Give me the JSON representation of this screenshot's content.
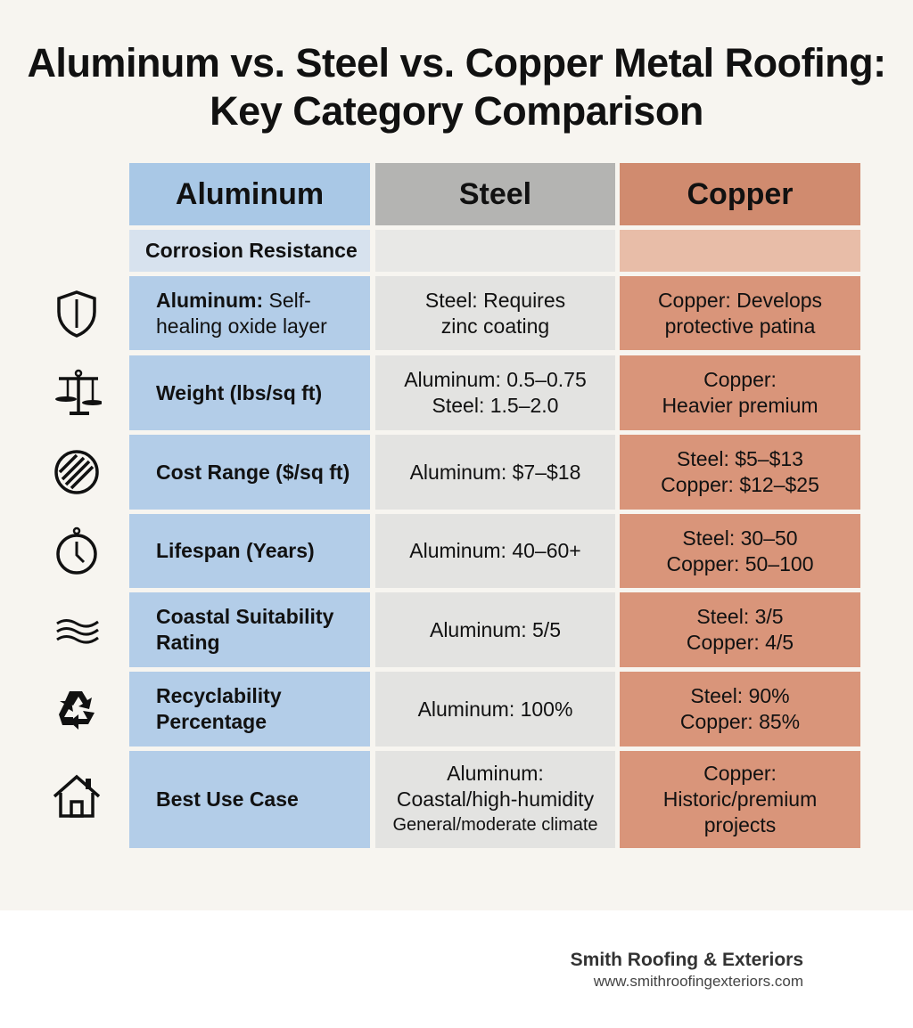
{
  "title": "Aluminum vs. Steel vs. Copper Metal Roofing: Key Category Comparison",
  "columns": [
    "Aluminum",
    "Steel",
    "Copper"
  ],
  "section_row": {
    "label": "Corrosion Resistance"
  },
  "rows": [
    {
      "icon": "shield-icon",
      "aluminum_bold": "Aluminum:",
      "aluminum": " Self-healing oxide layer",
      "steel": [
        "Steel: Requires",
        "zinc coating"
      ],
      "copper": [
        "Copper: Develops",
        "protective patina"
      ]
    },
    {
      "icon": "scale-icon",
      "aluminum": "Weight (lbs/sq ft)",
      "steel": [
        "Aluminum: 0.5–0.75",
        "Steel: 1.5–2.0"
      ],
      "copper": [
        "Copper:",
        "Heavier premium"
      ]
    },
    {
      "icon": "striped-circle-icon",
      "aluminum": "Cost Range ($/sq ft)",
      "steel": [
        "Aluminum: $7–$18"
      ],
      "copper": [
        "Steel: $5–$13",
        "Copper: $12–$25"
      ]
    },
    {
      "icon": "stopwatch-icon",
      "aluminum": "Lifespan (Years)",
      "steel": [
        "Aluminum: 40–60+"
      ],
      "copper": [
        "Steel: 30–50",
        "Copper: 50–100"
      ]
    },
    {
      "icon": "waves-icon",
      "aluminum": "Coastal Suitability Rating",
      "steel": [
        "Aluminum: 5/5"
      ],
      "copper": [
        "Steel: 3/5",
        "Copper: 4/5"
      ]
    },
    {
      "icon": "recycle-icon",
      "aluminum": "Recyclability Percentage",
      "steel": [
        "Aluminum: 100%"
      ],
      "copper": [
        "Steel: 90%",
        "Copper: 85%"
      ]
    },
    {
      "icon": "house-icon",
      "aluminum": "Best Use Case",
      "steel": [
        "Aluminum:",
        "Coastal/high-humidity",
        "General/moderate climate"
      ],
      "copper": [
        "Copper:",
        "Historic/premium",
        "projects"
      ]
    }
  ],
  "colors": {
    "aluminum": "#b3cde8",
    "steel": "#e3e3e1",
    "copper": "#d9957a",
    "background": "#f7f5f0"
  },
  "footer": {
    "brand": "Smith Roofing & Exteriors",
    "url": "www.smithroofingexteriors.com"
  }
}
